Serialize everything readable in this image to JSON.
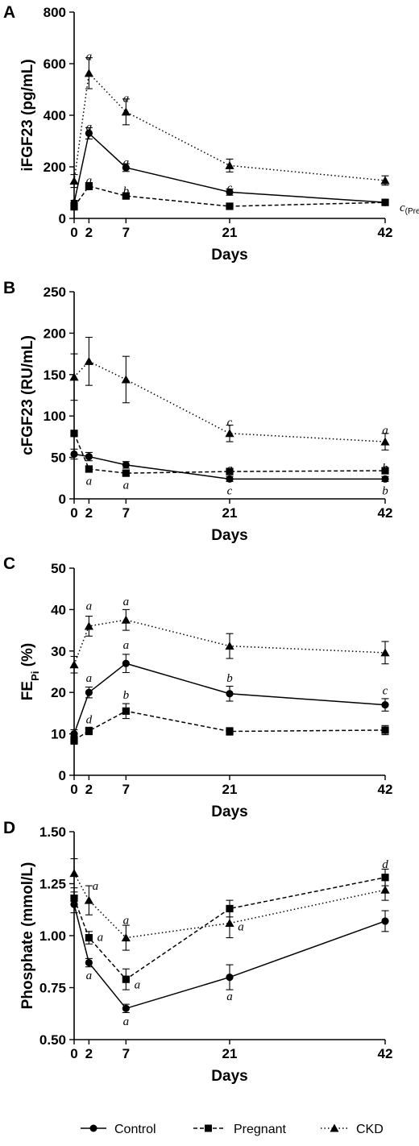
{
  "legend": {
    "control": "Control",
    "pregnant": "Pregnant",
    "ckd": "CKD"
  },
  "chart_data": [
    {
      "type": "line",
      "panel": "A",
      "ylabel": "iFGF23 (pg/mL)",
      "xlabel": "Days",
      "ylim": [
        0,
        800
      ],
      "yticks": [
        0,
        200,
        400,
        600,
        800
      ],
      "x": [
        0,
        2,
        7,
        21,
        42
      ],
      "xticks": [
        0,
        2,
        7,
        21,
        42
      ],
      "grid": false,
      "series": [
        {
          "name": "Control",
          "marker": "circle",
          "dash": "",
          "values": [
            60,
            330,
            197,
            102,
            62
          ],
          "errors": [
            10,
            22,
            15,
            12,
            8
          ]
        },
        {
          "name": "Pregnant",
          "marker": "square",
          "dash": "5,3",
          "values": [
            45,
            125,
            87,
            47,
            62
          ],
          "errors": [
            10,
            14,
            10,
            6,
            7
          ]
        },
        {
          "name": "CKD",
          "marker": "triangle",
          "dash": "1.5,3",
          "values": [
            145,
            563,
            413,
            205,
            147
          ],
          "errors": [
            25,
            60,
            50,
            25,
            18
          ]
        }
      ],
      "annotations": [
        {
          "text": "a",
          "x": 2,
          "y": 630,
          "dx": 0,
          "dy": 0
        },
        {
          "text": "a",
          "x": 7,
          "y": 467,
          "dx": 0,
          "dy": 0
        },
        {
          "text": "a",
          "x": 2,
          "y": 357,
          "dx": 0,
          "dy": 0
        },
        {
          "text": "a",
          "x": 7,
          "y": 218,
          "dx": 0,
          "dy": 0
        },
        {
          "text": "c",
          "x": 21,
          "y": 120,
          "dx": 0,
          "dy": 0
        },
        {
          "text": "a",
          "x": 2,
          "y": 148,
          "dx": 0,
          "dy": 0
        },
        {
          "text": "b",
          "x": 7,
          "y": 108,
          "dx": 0,
          "dy": 0
        },
        {
          "text": "c",
          "x": 42,
          "y": 62,
          "dx": 18,
          "dy": 6,
          "sub": "(Preg)"
        }
      ]
    },
    {
      "type": "line",
      "panel": "B",
      "ylabel": "cFGF23 (RU/mL)",
      "xlabel": "Days",
      "ylim": [
        0,
        250
      ],
      "yticks": [
        0,
        50,
        100,
        150,
        200,
        250
      ],
      "x": [
        0,
        2,
        7,
        21,
        42
      ],
      "xticks": [
        0,
        2,
        7,
        21,
        42
      ],
      "grid": false,
      "series": [
        {
          "name": "Control",
          "marker": "circle",
          "dash": "",
          "values": [
            54,
            51,
            41,
            24,
            24
          ],
          "errors": [
            6,
            5,
            4,
            3,
            3
          ]
        },
        {
          "name": "Pregnant",
          "marker": "square",
          "dash": "5,3",
          "values": [
            79,
            36,
            31,
            33,
            34
          ],
          "errors": [
            0,
            3,
            3,
            2,
            2
          ]
        },
        {
          "name": "CKD",
          "marker": "triangle",
          "dash": "1.5,3",
          "values": [
            147,
            166,
            144,
            79,
            69
          ],
          "errors": [
            28,
            29,
            28,
            10,
            10
          ]
        }
      ],
      "annotations": [
        {
          "text": "c",
          "x": 21,
          "y": 93,
          "dx": 0,
          "dy": 0
        },
        {
          "text": "a",
          "x": 42,
          "y": 83,
          "dx": 0,
          "dy": 0
        },
        {
          "text": "a",
          "x": 2,
          "y": 22,
          "dx": 0,
          "dy": 0
        },
        {
          "text": "a",
          "x": 7,
          "y": 17,
          "dx": 0,
          "dy": 0
        },
        {
          "text": "a",
          "x": 21,
          "y": 37,
          "dx": 0,
          "dy": 0
        },
        {
          "text": "b",
          "x": 42,
          "y": 38,
          "dx": 0,
          "dy": 0
        },
        {
          "text": "c",
          "x": 21,
          "y": 10,
          "dx": 0,
          "dy": 0
        },
        {
          "text": "b",
          "x": 42,
          "y": 10,
          "dx": 0,
          "dy": 0
        }
      ]
    },
    {
      "type": "line",
      "panel": "C",
      "ylabel": "FE",
      "ylabel_sub": "Pi",
      "ylabel_suffix": " (%)",
      "xlabel": "Days",
      "ylim": [
        0,
        50
      ],
      "yticks": [
        0,
        10,
        20,
        30,
        40,
        50
      ],
      "x": [
        0,
        2,
        7,
        21,
        42
      ],
      "xticks": [
        0,
        2,
        7,
        21,
        42
      ],
      "grid": false,
      "series": [
        {
          "name": "Control",
          "marker": "circle",
          "dash": "",
          "values": [
            10,
            20,
            27,
            19.7,
            17
          ],
          "errors": [
            1,
            1.3,
            2.2,
            1.8,
            1.5
          ]
        },
        {
          "name": "Pregnant",
          "marker": "square",
          "dash": "5,3",
          "values": [
            8.5,
            10.7,
            15.5,
            10.6,
            10.9
          ],
          "errors": [
            1,
            0.9,
            1.8,
            0.9,
            1.1
          ]
        },
        {
          "name": "CKD",
          "marker": "triangle",
          "dash": "1.5,3",
          "values": [
            26.7,
            36,
            37.5,
            31.2,
            29.6
          ],
          "errors": [
            2,
            2.4,
            2.5,
            3,
            2.7
          ]
        }
      ],
      "annotations": [
        {
          "text": "a",
          "x": 2,
          "y": 41,
          "dx": 0,
          "dy": 0
        },
        {
          "text": "a",
          "x": 7,
          "y": 42,
          "dx": 0,
          "dy": 0
        },
        {
          "text": "a",
          "x": 2,
          "y": 23.5,
          "dx": 0,
          "dy": 0
        },
        {
          "text": "a",
          "x": 7,
          "y": 31.5,
          "dx": 0,
          "dy": 0
        },
        {
          "text": "b",
          "x": 21,
          "y": 23.5,
          "dx": 0,
          "dy": 0
        },
        {
          "text": "c",
          "x": 42,
          "y": 20.5,
          "dx": 0,
          "dy": 0
        },
        {
          "text": "d",
          "x": 2,
          "y": 13.5,
          "dx": 0,
          "dy": 0
        },
        {
          "text": "b",
          "x": 7,
          "y": 19.5,
          "dx": 0,
          "dy": 0
        }
      ]
    },
    {
      "type": "line",
      "panel": "D",
      "ylabel": "Phosphate (mmol/L)",
      "xlabel": "Days",
      "ylim": [
        0.5,
        1.5
      ],
      "yticks": [
        0.5,
        0.75,
        1.0,
        1.25,
        1.5
      ],
      "yticklabels": [
        "0.50",
        "0.75",
        "1.00",
        "1.25",
        "1.50"
      ],
      "x": [
        0,
        2,
        7,
        21,
        42
      ],
      "xticks": [
        0,
        2,
        7,
        21,
        42
      ],
      "grid": false,
      "series": [
        {
          "name": "Control",
          "marker": "circle",
          "dash": "",
          "values": [
            1.15,
            0.87,
            0.65,
            0.8,
            1.07
          ],
          "errors": [
            0.04,
            0.02,
            0.02,
            0.06,
            0.05
          ]
        },
        {
          "name": "Pregnant",
          "marker": "square",
          "dash": "5,3",
          "values": [
            1.18,
            0.99,
            0.79,
            1.13,
            1.28
          ],
          "errors": [
            0.03,
            0.03,
            0.05,
            0.04,
            0.04
          ]
        },
        {
          "name": "CKD",
          "marker": "triangle",
          "dash": "1.5,3",
          "values": [
            1.3,
            1.17,
            0.99,
            1.06,
            1.22
          ],
          "errors": [
            0.07,
            0.07,
            0.06,
            0.07,
            0.05
          ]
        }
      ],
      "annotations": [
        {
          "text": "a",
          "x": 2,
          "y": 1.24,
          "dx": 8,
          "dy": 0
        },
        {
          "text": "a",
          "x": 7,
          "y": 1.075,
          "dx": 0,
          "dy": 0
        },
        {
          "text": "a",
          "x": 2,
          "y": 0.995,
          "dx": 14,
          "dy": 0
        },
        {
          "text": "a",
          "x": 2,
          "y": 0.81,
          "dx": 0,
          "dy": 0
        },
        {
          "text": "a",
          "x": 7,
          "y": 0.765,
          "dx": 14,
          "dy": 0
        },
        {
          "text": "a",
          "x": 7,
          "y": 0.59,
          "dx": 0,
          "dy": 0
        },
        {
          "text": "a",
          "x": 21,
          "y": 1.045,
          "dx": 14,
          "dy": 0
        },
        {
          "text": "a",
          "x": 21,
          "y": 0.71,
          "dx": 0,
          "dy": 0
        },
        {
          "text": "d",
          "x": 42,
          "y": 1.345,
          "dx": 0,
          "dy": 0
        }
      ]
    }
  ]
}
